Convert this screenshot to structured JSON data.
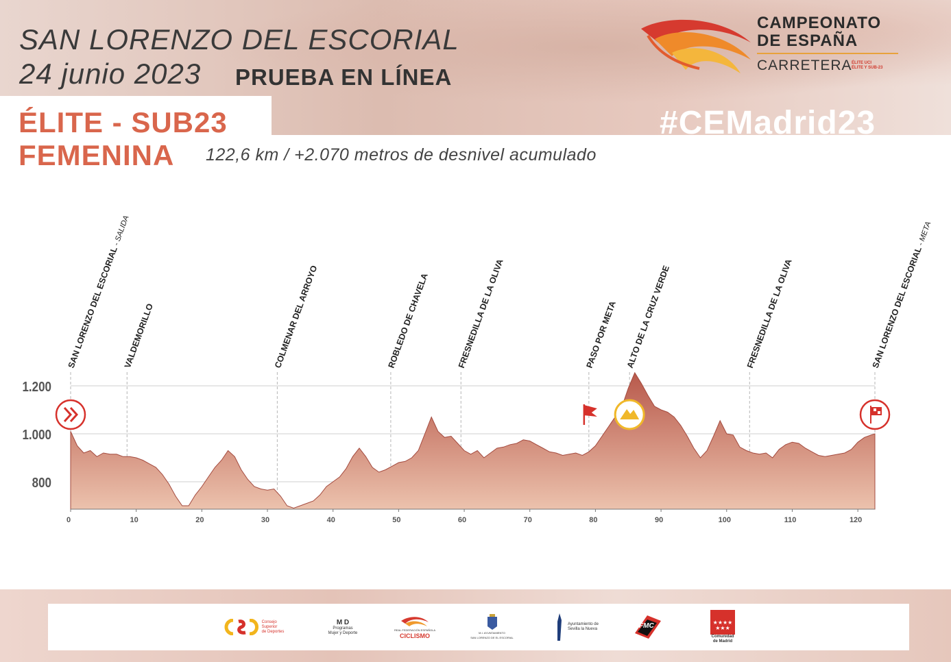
{
  "header": {
    "venue": "SAN LORENZO DEL ESCORIAL",
    "date": "24 junio 2023",
    "event_type": "PRUEBA EN LÍNEA",
    "category_line1": "ÉLITE - SUB23",
    "category_line2": "FEMENINA",
    "distance_info": "122,6 km / +2.070 metros de desnivel acumulado",
    "hashtag": "#CEMadrid23"
  },
  "logo": {
    "line1": "CAMPEONATO",
    "line2": "DE ESPAÑA",
    "line3": "CARRETERA",
    "sub1": "ÉLITE UCI",
    "sub2": "ÉLITE Y SUB-23",
    "colors": [
      "#d63a2f",
      "#ef8a2a",
      "#f4b63c"
    ]
  },
  "chart_data": {
    "type": "area",
    "xlim": [
      0,
      122.6
    ],
    "ylim": [
      680,
      1270
    ],
    "x_ticks": [
      0,
      10,
      20,
      30,
      40,
      50,
      60,
      70,
      80,
      90,
      100,
      110,
      120
    ],
    "y_ticks": [
      800,
      1000,
      1200
    ],
    "y_tick_labels": [
      "800",
      "1.000",
      "1.200"
    ],
    "grid": true,
    "fill_color_top": "#b8594b",
    "fill_color_bottom": "#ecc2ad",
    "profile": [
      [
        0,
        1010
      ],
      [
        1,
        950
      ],
      [
        2,
        920
      ],
      [
        3,
        930
      ],
      [
        4,
        905
      ],
      [
        5,
        920
      ],
      [
        6,
        915
      ],
      [
        7,
        915
      ],
      [
        8,
        905
      ],
      [
        9,
        905
      ],
      [
        10,
        900
      ],
      [
        11,
        890
      ],
      [
        12,
        875
      ],
      [
        13,
        860
      ],
      [
        14,
        830
      ],
      [
        15,
        790
      ],
      [
        16,
        740
      ],
      [
        17,
        700
      ],
      [
        18,
        700
      ],
      [
        19,
        745
      ],
      [
        20,
        780
      ],
      [
        21,
        820
      ],
      [
        22,
        860
      ],
      [
        23,
        890
      ],
      [
        24,
        930
      ],
      [
        25,
        905
      ],
      [
        26,
        850
      ],
      [
        27,
        810
      ],
      [
        28,
        780
      ],
      [
        29,
        770
      ],
      [
        30,
        765
      ],
      [
        31,
        770
      ],
      [
        32,
        740
      ],
      [
        33,
        700
      ],
      [
        34,
        690
      ],
      [
        35,
        700
      ],
      [
        36,
        710
      ],
      [
        37,
        720
      ],
      [
        38,
        745
      ],
      [
        39,
        780
      ],
      [
        40,
        800
      ],
      [
        41,
        820
      ],
      [
        42,
        855
      ],
      [
        43,
        905
      ],
      [
        44,
        940
      ],
      [
        45,
        905
      ],
      [
        46,
        860
      ],
      [
        47,
        840
      ],
      [
        48,
        850
      ],
      [
        49,
        865
      ],
      [
        50,
        880
      ],
      [
        51,
        885
      ],
      [
        52,
        900
      ],
      [
        53,
        930
      ],
      [
        54,
        1000
      ],
      [
        55,
        1070
      ],
      [
        56,
        1010
      ],
      [
        57,
        985
      ],
      [
        58,
        990
      ],
      [
        59,
        960
      ],
      [
        60,
        930
      ],
      [
        61,
        915
      ],
      [
        62,
        930
      ],
      [
        63,
        900
      ],
      [
        64,
        920
      ],
      [
        65,
        940
      ],
      [
        66,
        945
      ],
      [
        67,
        955
      ],
      [
        68,
        960
      ],
      [
        69,
        975
      ],
      [
        70,
        970
      ],
      [
        71,
        955
      ],
      [
        72,
        940
      ],
      [
        73,
        925
      ],
      [
        74,
        920
      ],
      [
        75,
        910
      ],
      [
        76,
        915
      ],
      [
        77,
        920
      ],
      [
        78,
        910
      ],
      [
        79,
        925
      ],
      [
        80,
        950
      ],
      [
        81,
        990
      ],
      [
        82,
        1030
      ],
      [
        83,
        1070
      ],
      [
        84,
        1110
      ],
      [
        85,
        1190
      ],
      [
        86,
        1255
      ],
      [
        87,
        1210
      ],
      [
        88,
        1160
      ],
      [
        89,
        1115
      ],
      [
        90,
        1100
      ],
      [
        91,
        1090
      ],
      [
        92,
        1070
      ],
      [
        93,
        1035
      ],
      [
        94,
        990
      ],
      [
        95,
        940
      ],
      [
        96,
        900
      ],
      [
        97,
        930
      ],
      [
        98,
        990
      ],
      [
        99,
        1055
      ],
      [
        100,
        1000
      ],
      [
        101,
        995
      ],
      [
        102,
        945
      ],
      [
        103,
        930
      ],
      [
        104,
        920
      ],
      [
        105,
        915
      ],
      [
        106,
        920
      ],
      [
        107,
        900
      ],
      [
        108,
        935
      ],
      [
        109,
        955
      ],
      [
        110,
        965
      ],
      [
        111,
        960
      ],
      [
        112,
        940
      ],
      [
        113,
        925
      ],
      [
        114,
        910
      ],
      [
        115,
        905
      ],
      [
        116,
        910
      ],
      [
        117,
        915
      ],
      [
        118,
        920
      ],
      [
        119,
        935
      ],
      [
        120,
        965
      ],
      [
        121,
        985
      ],
      [
        122,
        995
      ],
      [
        122.6,
        1000
      ]
    ],
    "waypoints": [
      {
        "km": 0,
        "name": "SAN LORENZO DEL ESCORIAL",
        "suffix": " - SALIDA",
        "icon": "start-icon"
      },
      {
        "km": 8.6,
        "name": "VALDEMORILLO",
        "suffix": ""
      },
      {
        "km": 31.5,
        "name": "COLMENAR DEL ARROYO",
        "suffix": ""
      },
      {
        "km": 48.8,
        "name": "ROBLEDO DE CHAVELA",
        "suffix": ""
      },
      {
        "km": 59.5,
        "name": "FRESNEDILLA DE LA OLIVA",
        "suffix": ""
      },
      {
        "km": 79,
        "name": "PASO POR META",
        "suffix": "",
        "icon": "flag-icon"
      },
      {
        "km": 85.2,
        "name": "ALTO DE LA CRUZ VERDE",
        "suffix": "",
        "icon": "mountain-icon"
      },
      {
        "km": 103.5,
        "name": "FRESNEDILLA DE LA OLIVA",
        "suffix": ""
      },
      {
        "km": 122.6,
        "name": "SAN LORENZO DEL ESCORIAL",
        "suffix": " - META",
        "icon": "finish-icon"
      }
    ]
  },
  "sponsors": [
    {
      "name": "csd",
      "label1": "Consejo",
      "label2": "Superior",
      "label3": "de Deportes"
    },
    {
      "name": "myd",
      "label1": "M  D",
      "label2": "Programas",
      "label3": "Mujer y Deporte"
    },
    {
      "name": "rfec",
      "label1": "REAL FEDERACIÓN ESPAÑOLA",
      "label2": "CICLISMO",
      "label3": ""
    },
    {
      "name": "ayto-escorial",
      "label1": "M.I. AYUNTAMIENTO",
      "label2": "SAN LORENZO DE EL ESCORIAL",
      "label3": ""
    },
    {
      "name": "sevilla-nueva",
      "label1": "Ayuntamiento de",
      "label2": "Sevilla la Nueva",
      "label3": ""
    },
    {
      "name": "fmc",
      "label1": "FMC",
      "label2": "",
      "label3": ""
    },
    {
      "name": "comunidad-madrid",
      "label1": "Comunidad",
      "label2": "de Madrid",
      "label3": ""
    }
  ]
}
